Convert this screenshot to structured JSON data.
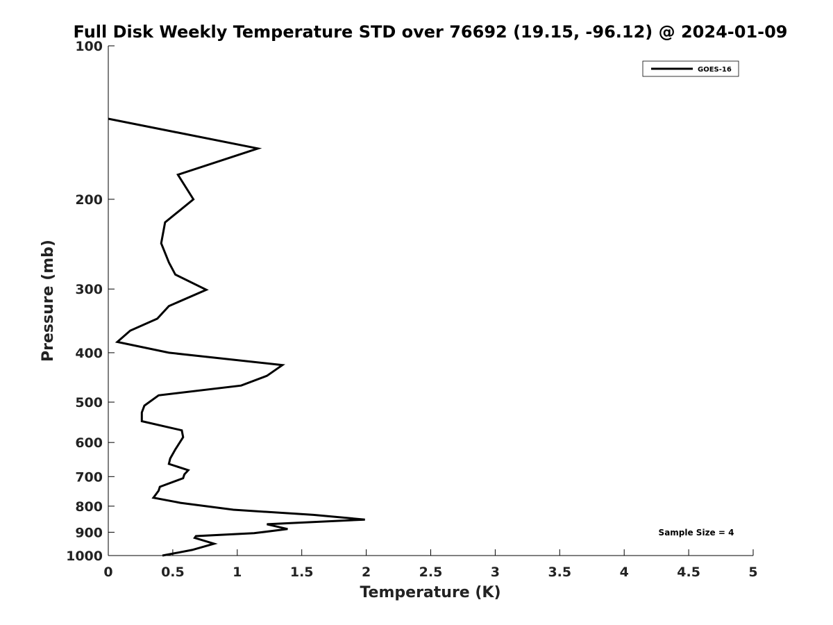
{
  "chart_data": {
    "type": "line",
    "title": "Full Disk Weekly Temperature STD over 76692 (19.15, -96.12) @ 2024-01-09",
    "xlabel": "Temperature (K)",
    "ylabel": "Pressure (mb)",
    "xlim": [
      0,
      5
    ],
    "ylim": [
      100,
      1000
    ],
    "y_scale": "log",
    "y_inverted": true,
    "grid": false,
    "legend_position": "top-right",
    "x_ticks": [
      "0",
      "0.5",
      "1",
      "1.5",
      "2",
      "2.5",
      "3",
      "3.5",
      "4",
      "4.5",
      "5"
    ],
    "y_ticks": [
      "100",
      "200",
      "300",
      "400",
      "500",
      "600",
      "700",
      "800",
      "900",
      "1000"
    ],
    "series": [
      {
        "name": "GOES-16",
        "color": "#000000",
        "points": [
          [
            0.0,
            139
          ],
          [
            1.16,
            159
          ],
          [
            0.54,
            179
          ],
          [
            0.66,
            200
          ],
          [
            0.44,
            222
          ],
          [
            0.41,
            244
          ],
          [
            0.47,
            266
          ],
          [
            0.52,
            281
          ],
          [
            0.76,
            301
          ],
          [
            0.47,
            324
          ],
          [
            0.38,
            343
          ],
          [
            0.17,
            362
          ],
          [
            0.07,
            381
          ],
          [
            0.47,
            400
          ],
          [
            1.35,
            423
          ],
          [
            1.23,
            444
          ],
          [
            1.03,
            464
          ],
          [
            0.39,
            485
          ],
          [
            0.28,
            508
          ],
          [
            0.26,
            524
          ],
          [
            0.26,
            545
          ],
          [
            0.57,
            568
          ],
          [
            0.58,
            586
          ],
          [
            0.52,
            619
          ],
          [
            0.48,
            645
          ],
          [
            0.47,
            661
          ],
          [
            0.62,
            680
          ],
          [
            0.59,
            693
          ],
          [
            0.58,
            705
          ],
          [
            0.4,
            733
          ],
          [
            0.39,
            746
          ],
          [
            0.35,
            770
          ],
          [
            0.56,
            788
          ],
          [
            0.97,
            813
          ],
          [
            1.59,
            832
          ],
          [
            1.99,
            850
          ],
          [
            1.23,
            868
          ],
          [
            1.39,
            887
          ],
          [
            1.13,
            904
          ],
          [
            0.68,
            916
          ],
          [
            0.67,
            923
          ],
          [
            0.82,
            948
          ],
          [
            0.65,
            975
          ],
          [
            0.42,
            1000
          ]
        ]
      }
    ],
    "annotations": [
      "Sample Size = 4"
    ]
  }
}
